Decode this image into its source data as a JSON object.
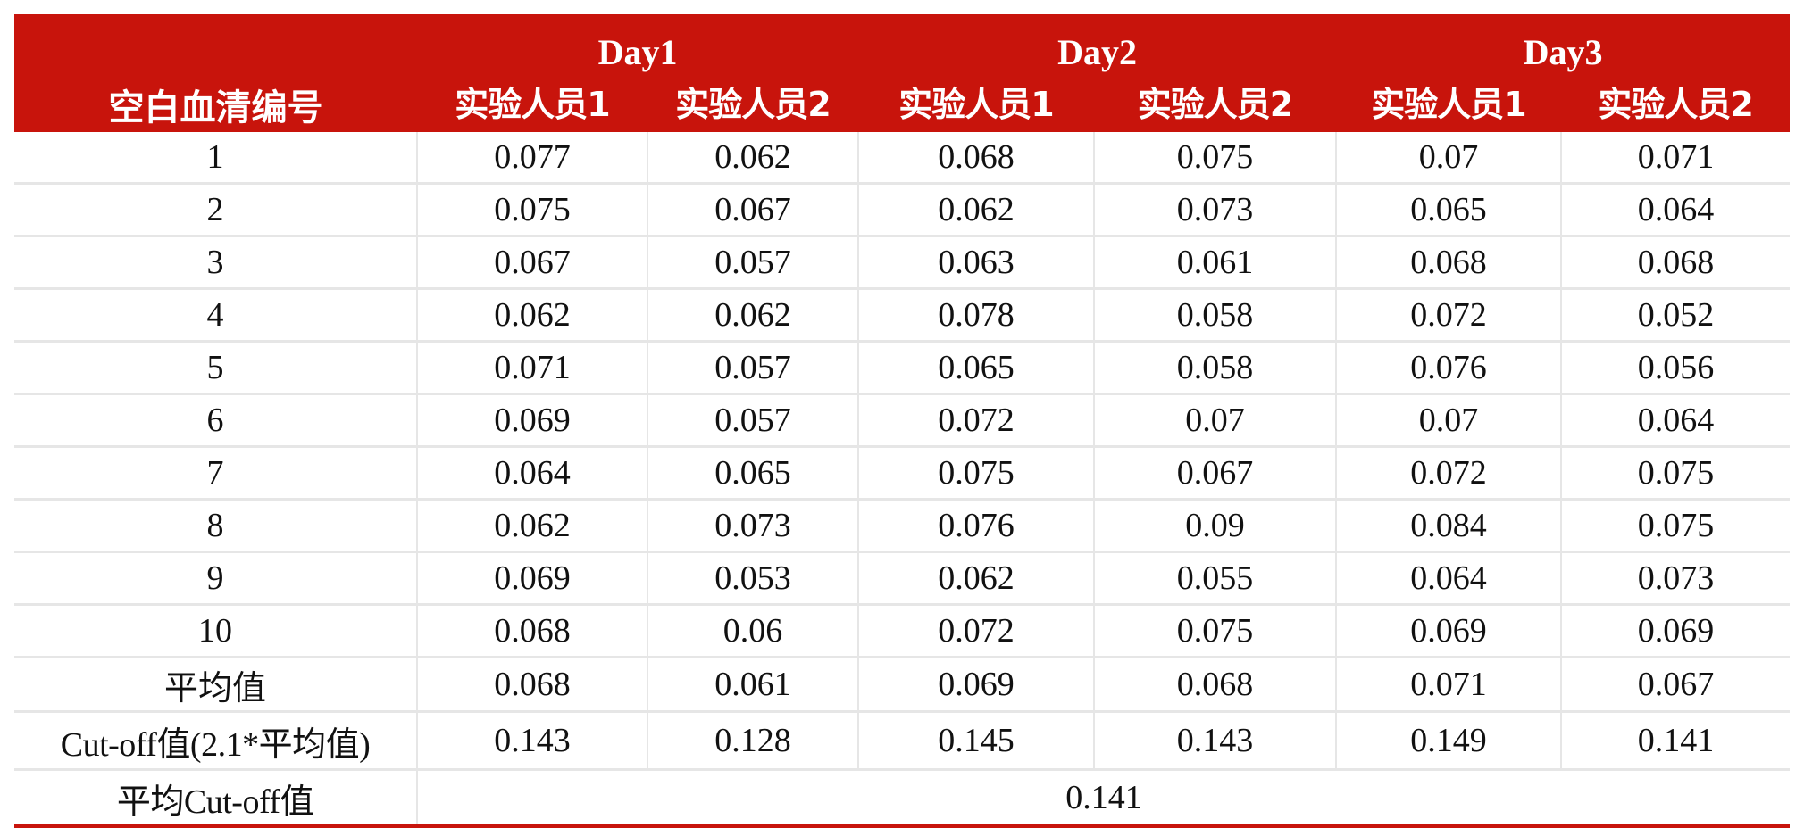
{
  "header": {
    "corner_label": "空白血清编号",
    "days": [
      "Day1",
      "Day2",
      "Day3"
    ],
    "operators": [
      "实验人员1",
      "实验人员2",
      "实验人员1",
      "实验人员2",
      "实验人员1",
      "实验人员2"
    ]
  },
  "rows": [
    {
      "id": "1",
      "values": [
        "0.077",
        "0.062",
        "0.068",
        "0.075",
        "0.07",
        "0.071"
      ]
    },
    {
      "id": "2",
      "values": [
        "0.075",
        "0.067",
        "0.062",
        "0.073",
        "0.065",
        "0.064"
      ]
    },
    {
      "id": "3",
      "values": [
        "0.067",
        "0.057",
        "0.063",
        "0.061",
        "0.068",
        "0.068"
      ]
    },
    {
      "id": "4",
      "values": [
        "0.062",
        "0.062",
        "0.078",
        "0.058",
        "0.072",
        "0.052"
      ]
    },
    {
      "id": "5",
      "values": [
        "0.071",
        "0.057",
        "0.065",
        "0.058",
        "0.076",
        "0.056"
      ]
    },
    {
      "id": "6",
      "values": [
        "0.069",
        "0.057",
        "0.072",
        "0.07",
        "0.07",
        "0.064"
      ]
    },
    {
      "id": "7",
      "values": [
        "0.064",
        "0.065",
        "0.075",
        "0.067",
        "0.072",
        "0.075"
      ]
    },
    {
      "id": "8",
      "values": [
        "0.062",
        "0.073",
        "0.076",
        "0.09",
        "0.084",
        "0.075"
      ]
    },
    {
      "id": "9",
      "values": [
        "0.069",
        "0.053",
        "0.062",
        "0.055",
        "0.064",
        "0.073"
      ]
    },
    {
      "id": "10",
      "values": [
        "0.068",
        "0.06",
        "0.072",
        "0.075",
        "0.069",
        "0.069"
      ]
    }
  ],
  "average": {
    "label": "平均值",
    "values": [
      "0.068",
      "0.061",
      "0.069",
      "0.068",
      "0.071",
      "0.067"
    ]
  },
  "cutoff": {
    "label": "Cut-off值(2.1*平均值)",
    "values": [
      "0.143",
      "0.128",
      "0.145",
      "0.143",
      "0.149",
      "0.141"
    ]
  },
  "mean_cutoff": {
    "label": "平均Cut-off值",
    "value": "0.141"
  },
  "colors": {
    "header_bg": "#c8140c",
    "header_text": "#ffffff",
    "grid": "#e6e6e6"
  }
}
